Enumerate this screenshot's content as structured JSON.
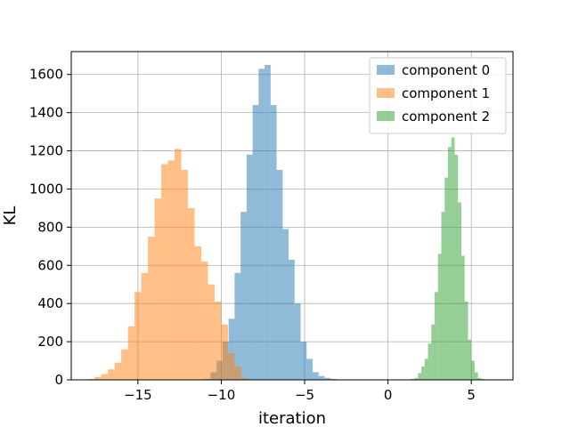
{
  "chart_data": {
    "type": "bar",
    "title": "",
    "xlabel": "iteration",
    "ylabel": "KL",
    "xlim": [
      -19.0,
      7.5
    ],
    "ylim": [
      0,
      1720
    ],
    "xticks": [
      -15,
      -10,
      -5,
      0,
      5
    ],
    "yticks": [
      0,
      200,
      400,
      600,
      800,
      1000,
      1200,
      1400,
      1600
    ],
    "grid": true,
    "legend_position": "top-right",
    "series": [
      {
        "name": "component 0",
        "color": "#1f77b4",
        "opacity": 0.5,
        "bin_start": -11.0,
        "bin_width": 0.36,
        "values": [
          5,
          40,
          100,
          200,
          320,
          560,
          880,
          1180,
          1440,
          1630,
          1650,
          1440,
          1100,
          790,
          630,
          400,
          200,
          110,
          40,
          20,
          10,
          5,
          2
        ]
      },
      {
        "name": "component 1",
        "color": "#ff7f0e",
        "opacity": 0.5,
        "bin_start": -18.0,
        "bin_width": 0.4,
        "values": [
          5,
          15,
          30,
          55,
          90,
          160,
          280,
          460,
          560,
          750,
          950,
          1130,
          1150,
          1210,
          1100,
          900,
          700,
          620,
          500,
          410,
          290,
          140,
          70,
          10
        ]
      },
      {
        "name": "component 2",
        "color": "#2ca02c",
        "opacity": 0.5,
        "bin_start": 1.4,
        "bin_width": 0.2,
        "values": [
          5,
          10,
          35,
          70,
          110,
          190,
          290,
          460,
          660,
          880,
          1060,
          1220,
          1270,
          1180,
          930,
          650,
          410,
          210,
          100,
          40,
          10,
          5
        ]
      }
    ]
  }
}
